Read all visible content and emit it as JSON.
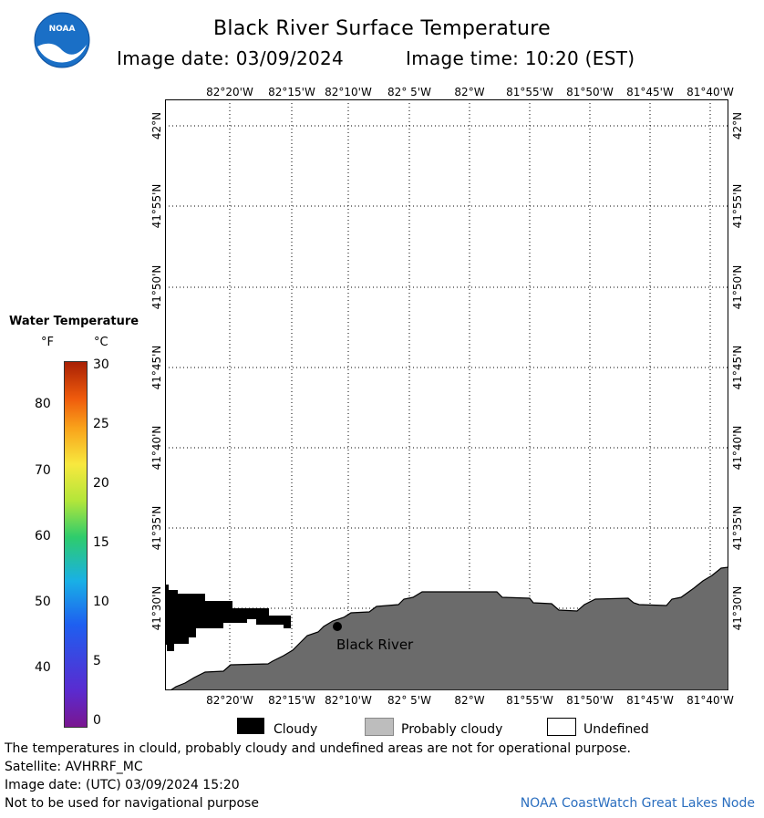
{
  "header": {
    "title": "Black River Surface Temperature",
    "image_date": "Image date: 03/09/2024",
    "image_time": "Image time: 10:20 (EST)",
    "logo_text": "NOAA"
  },
  "map": {
    "lon_labels": [
      "82°20'W",
      "82°15'W",
      "82°10'W",
      "82° 5'W",
      "82°W",
      "81°55'W",
      "81°50'W",
      "81°45'W",
      "81°40'W"
    ],
    "lat_labels": [
      "42°N",
      "41°55'N",
      "41°50'N",
      "41°45'N",
      "41°40'N",
      "41°35'N",
      "41°30'N"
    ],
    "station_label": "Black River",
    "land_color": "#6b6b6b",
    "cloud_color": "#000000"
  },
  "colorbar": {
    "title": "Water Temperature",
    "unit_f": "°F",
    "unit_c": "°C",
    "f_ticks": [
      "80",
      "70",
      "60",
      "50",
      "40"
    ],
    "c_ticks": [
      "30",
      "25",
      "20",
      "15",
      "10",
      "5",
      "0"
    ]
  },
  "legend": {
    "cloudy": "Cloudy",
    "probably_cloudy": "Probably cloudy",
    "undefined": "Undefined",
    "cloudy_color": "#000000",
    "probably_cloudy_color": "#bdbdbd"
  },
  "footer": {
    "disclaimer": "The temperatures in clould, probably cloudy and undefined areas are not for operational purpose.",
    "satellite": "Satellite: AVHRRF_MC",
    "image_date_utc": "Image date: (UTC) 03/09/2024  15:20",
    "nav_warning": "Not to be used for navigational purpose",
    "credit": "NOAA CoastWatch Great Lakes Node"
  }
}
